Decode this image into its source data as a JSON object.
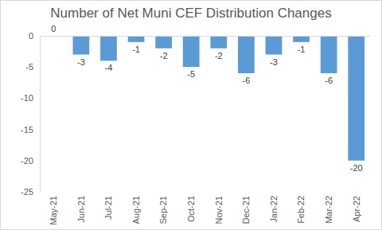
{
  "chart_data": {
    "type": "bar",
    "title": "Number of Net Muni CEF Distribution Changes",
    "categories": [
      "May-21",
      "Jun-21",
      "Jul-21",
      "Aug-21",
      "Sep-21",
      "Oct-21",
      "Nov-21",
      "Dec-21",
      "Jan-22",
      "Feb-22",
      "Mar-22",
      "Apr-22"
    ],
    "values": [
      0,
      -3,
      -4,
      -1,
      -2,
      -5,
      -2,
      -6,
      -3,
      -1,
      -6,
      -20
    ],
    "color": "#5b9bd5",
    "ylim": [
      -25,
      0
    ],
    "yticks": [
      -25,
      -20,
      -15,
      -10,
      -5,
      0
    ],
    "grid": false,
    "data_labels": true
  }
}
